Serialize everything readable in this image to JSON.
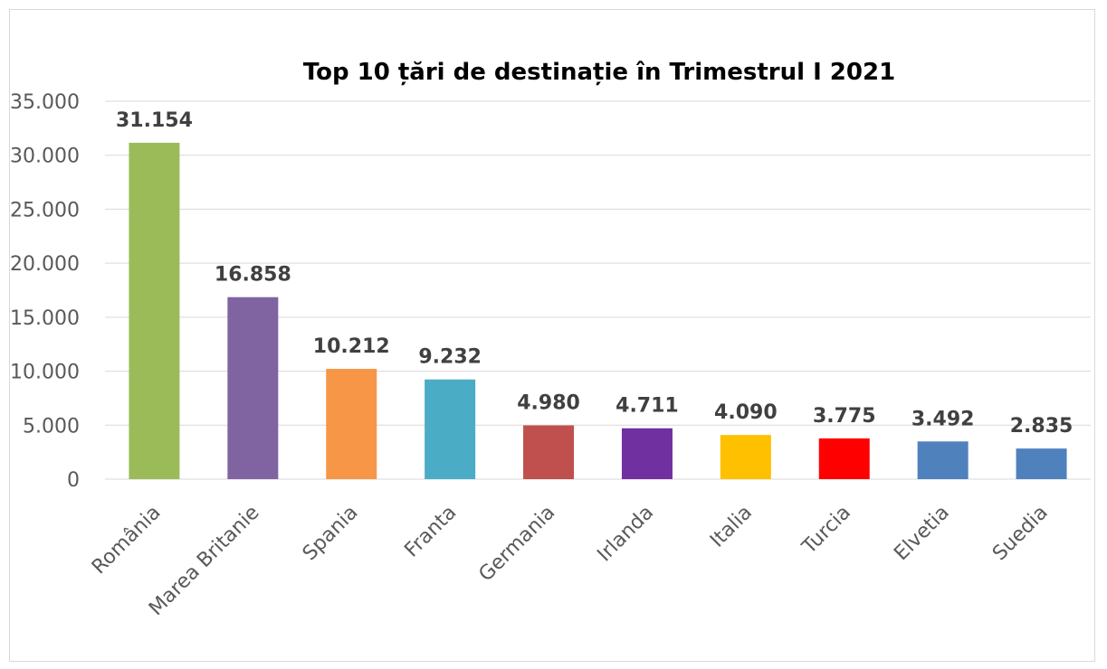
{
  "chart_data": {
    "type": "bar",
    "title": "Top 10 țări de destinație în Trimestrul I 2021",
    "xlabel": "",
    "ylabel": "",
    "categories": [
      "România",
      "Marea Britanie",
      "Spania",
      "Franta",
      "Germania",
      "Irlanda",
      "Italia",
      "Turcia",
      "Elvetia",
      "Suedia"
    ],
    "values": [
      31154,
      16858,
      10212,
      9232,
      4980,
      4711,
      4090,
      3775,
      3492,
      2835
    ],
    "value_labels": [
      "31.154",
      "16.858",
      "10.212",
      "9.232",
      "4.980",
      "4.711",
      "4.090",
      "3.775",
      "3.492",
      "2.835"
    ],
    "colors": [
      "#9bbb59",
      "#8064a2",
      "#f79646",
      "#4bacc6",
      "#c0504d",
      "#7030a0",
      "#ffc000",
      "#ff0000",
      "#4f81bd",
      "#4f81bd"
    ],
    "yticks": [
      0,
      5000,
      10000,
      15000,
      20000,
      25000,
      30000,
      35000
    ],
    "ytick_labels": [
      "0",
      "5.000",
      "10.000",
      "15.000",
      "20.000",
      "25.000",
      "30.000",
      "35.000"
    ],
    "ylim": [
      0,
      35000
    ],
    "grid": true,
    "legend": "none"
  }
}
